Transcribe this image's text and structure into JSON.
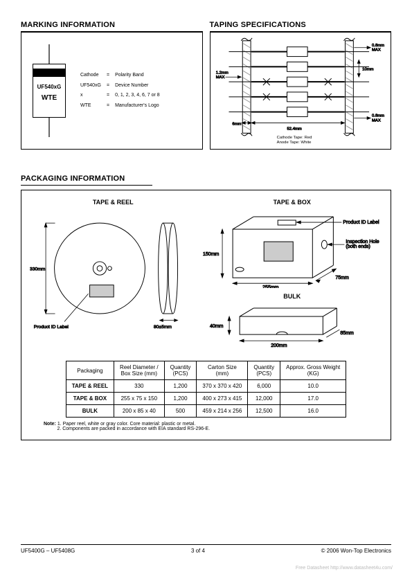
{
  "headings": {
    "marking": "MARKING INFORMATION",
    "taping": "TAPING SPECIFICATIONS",
    "packaging": "PACKAGING INFORMATION"
  },
  "marking": {
    "part_label": "UF540xG",
    "logo_label": "WTE",
    "legend": [
      {
        "left": "Cathode",
        "right": "Polarity Band"
      },
      {
        "left": "UF540xG",
        "right": "Device Number"
      },
      {
        "left": "x",
        "right": "0, 1, 2, 3, 4, 6, 7 or 8"
      },
      {
        "left": "WTE",
        "right": "Manufacturer's Logo"
      }
    ],
    "colors": {
      "band": "#000000",
      "lead": "#666666",
      "outline": "#000000"
    }
  },
  "taping": {
    "labels": {
      "top_right": "0.8mm\nMAX",
      "mid_left": "1.2mm\nMAX",
      "pitch": "10mm",
      "left_bottom": "6mm",
      "width": "52.4mm",
      "bottom_right": "0.8mm\nMAX",
      "cathode_note": "Cathode Tape: Red\nAnode Tape: White"
    },
    "fontsize": 6,
    "colors": {
      "stroke": "#000000",
      "fill": "#ffffff",
      "hatch": "#999999"
    }
  },
  "packaging": {
    "subheadings": {
      "reel": "TAPE & REEL",
      "box": "TAPE & BOX",
      "bulk": "BULK"
    },
    "reel": {
      "diameter_label": "330mm",
      "thickness_label": "80±5mm",
      "product_id": "Product ID Label"
    },
    "box": {
      "height": "150mm",
      "width": "255mm",
      "depth": "75mm",
      "product_id": "Product ID Label",
      "inspection": "Inspection Hole\n(both ends)"
    },
    "bulk": {
      "height": "40mm",
      "width": "200mm",
      "depth": "85mm"
    },
    "label_fontsize": 7
  },
  "table": {
    "columns": [
      "Packaging",
      "Reel Diameter /\nBox Size (mm)",
      "Quantity\n(PCS)",
      "Carton Size\n(mm)",
      "Quantity\n(PCS)",
      "Approx. Gross Weight\n(KG)"
    ],
    "rows": [
      [
        "TAPE & REEL",
        "330",
        "1,200",
        "370 x 370 x 420",
        "6,000",
        "10.0"
      ],
      [
        "TAPE & BOX",
        "255 x 75 x 150",
        "1,200",
        "400 x 273 x 415",
        "12,000",
        "17.0"
      ],
      [
        "BULK",
        "200 x 85 x 40",
        "500",
        "459 x 214 x 256",
        "12,500",
        "16.0"
      ]
    ],
    "header_fontsize": 8,
    "cell_fontsize": 8
  },
  "note": {
    "label": "Note:",
    "lines": [
      "1. Paper reel, white or gray color. Core material: plastic or metal.",
      "2. Components are packed in accordance with EIA standard RS-296-E."
    ]
  },
  "footer": {
    "left": "UF5400G – UF5408G",
    "center": "3 of 4",
    "right": "© 2006 Won-Top Electronics"
  },
  "watermark": "Free Datasheet http://www.datasheet4u.com/"
}
